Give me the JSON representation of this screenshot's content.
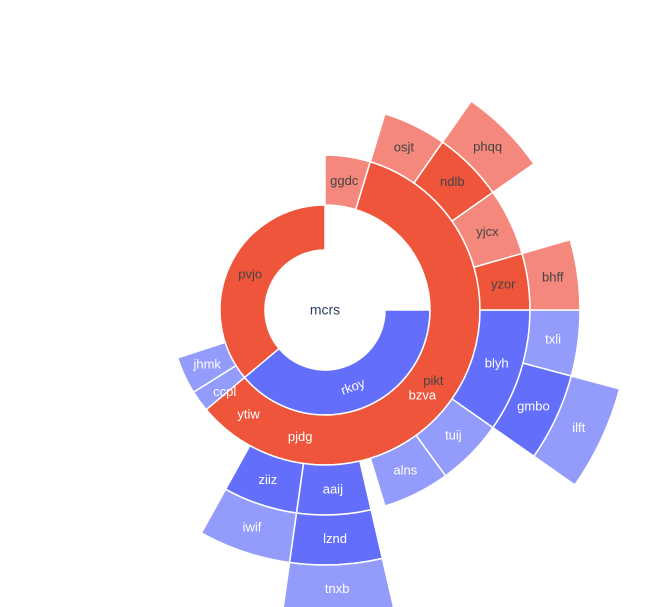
{
  "chart_data": {
    "type": "sunburst",
    "root": "mcrs",
    "colors": {
      "blue_parent": "#636efa",
      "blue_child": "#939bfb",
      "red_parent": "#ef553b",
      "red_child": "#f4887c",
      "dark_text": "#444444",
      "white_text": "#ffffff",
      "center_text": "#2a3f5f"
    },
    "rings": {
      "r0": 60,
      "r1": 105,
      "r2": 155,
      "r3": 205,
      "r4": 255,
      "r5": 305
    },
    "segments": [
      {
        "label": "rkoy",
        "parent": "mcrs",
        "level": 1,
        "start": 360,
        "end": 220,
        "color": "blue_parent",
        "text": "white_text"
      },
      {
        "label": "pvjo",
        "parent": "mcrs",
        "level": 1,
        "start": 220,
        "end": 90,
        "color": "red_parent",
        "text": "dark_text"
      },
      {
        "label": "bzva",
        "parent": "rkoy",
        "level": 2,
        "start": 360,
        "end": 277,
        "color": "blue_parent",
        "text": "white_text"
      },
      {
        "label": "pjdg",
        "parent": "rkoy",
        "level": 2,
        "start": 277,
        "end": 241,
        "color": "blue_parent",
        "text": "white_text"
      },
      {
        "label": "ytiw",
        "parent": "rkoy",
        "level": 2,
        "start": 241,
        "end": 227,
        "color": "blue_child",
        "text": "white_text"
      },
      {
        "label": "ccpl",
        "parent": "rkoy",
        "level": 2,
        "start": 227,
        "end": 212,
        "color": "blue_child",
        "text": "white_text"
      },
      {
        "label": "jhmk",
        "parent": "rkoy",
        "level": 2,
        "start": 212,
        "end": 198,
        "color": "blue_child",
        "text": "white_text"
      },
      {
        "label": "ggdc",
        "parent": "pvjo",
        "level": 2,
        "start": 90,
        "end": 73,
        "color": "red_child",
        "text": "dark_text"
      },
      {
        "label": "pikt",
        "parent": "pvjo",
        "level": 2,
        "start": 73,
        "end": 220,
        "color": "red_parent",
        "text": "dark_text"
      },
      {
        "label": "blyh",
        "parent": "bzva",
        "level": 3,
        "start": 360,
        "end": 325,
        "color": "blue_parent",
        "text": "white_text"
      },
      {
        "label": "tuij",
        "parent": "bzva",
        "level": 3,
        "start": 325,
        "end": 306,
        "color": "blue_child",
        "text": "white_text"
      },
      {
        "label": "alns",
        "parent": "bzva",
        "level": 3,
        "start": 306,
        "end": 287,
        "color": "blue_child",
        "text": "white_text"
      },
      {
        "label": "aaij",
        "parent": "pjdg",
        "level": 3,
        "start": 283,
        "end": 262,
        "color": "blue_parent",
        "text": "white_text"
      },
      {
        "label": "ziiz",
        "parent": "pjdg",
        "level": 3,
        "start": 262,
        "end": 241,
        "color": "blue_parent",
        "text": "white_text"
      },
      {
        "label": "osjt",
        "parent": "pikt",
        "level": 3,
        "start": 73,
        "end": 55,
        "color": "red_child",
        "text": "dark_text"
      },
      {
        "label": "ndlb",
        "parent": "pikt",
        "level": 3,
        "start": 55,
        "end": 35,
        "color": "red_parent",
        "text": "dark_text"
      },
      {
        "label": "yjcx",
        "parent": "pikt",
        "level": 3,
        "start": 35,
        "end": 16,
        "color": "red_child",
        "text": "dark_text"
      },
      {
        "label": "yzor",
        "parent": "pikt",
        "level": 3,
        "start": 16,
        "end": 0,
        "color": "red_parent",
        "text": "dark_text"
      },
      {
        "label": "gmbo",
        "parent": "blyh",
        "level": 4,
        "start": 345,
        "end": 325,
        "color": "blue_parent",
        "text": "white_text"
      },
      {
        "label": "txli",
        "parent": "blyh",
        "level": 4,
        "start": 360,
        "end": 345,
        "color": "blue_child",
        "text": "white_text"
      },
      {
        "label": "lznd",
        "parent": "aaij",
        "level": 4,
        "start": 283,
        "end": 262,
        "color": "blue_parent",
        "text": "white_text"
      },
      {
        "label": "iwif",
        "parent": "ziiz",
        "level": 4,
        "start": 262,
        "end": 241,
        "color": "blue_child",
        "text": "white_text"
      },
      {
        "label": "phqq",
        "parent": "ndlb",
        "level": 4,
        "start": 55,
        "end": 35,
        "color": "red_child",
        "text": "dark_text"
      },
      {
        "label": "bhff",
        "parent": "yzor",
        "level": 4,
        "start": 16,
        "end": 0,
        "color": "red_child",
        "text": "dark_text"
      },
      {
        "label": "ilft",
        "parent": "gmbo",
        "level": 5,
        "start": 345,
        "end": 325,
        "color": "blue_child",
        "text": "white_text"
      },
      {
        "label": "tnxb",
        "parent": "lznd",
        "level": 5,
        "start": 283,
        "end": 262,
        "color": "blue_child",
        "text": "white_text"
      }
    ]
  }
}
